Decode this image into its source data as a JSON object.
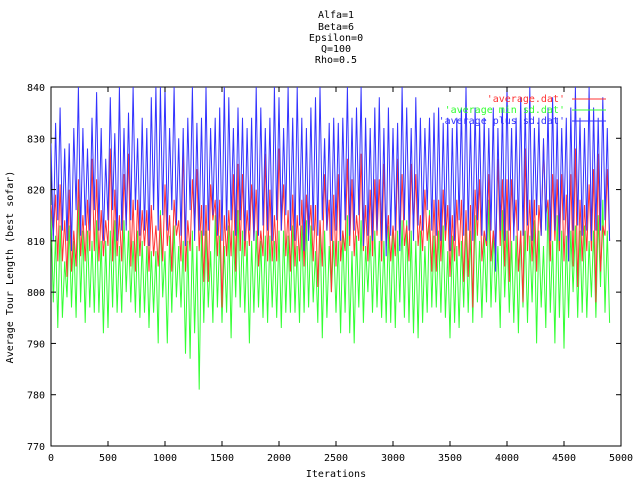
{
  "title_lines": [
    "Alfa=1",
    "Beta=6",
    "Epsilon=0",
    "Q=100",
    "Rho=0.5"
  ],
  "chart_data": {
    "type": "line",
    "title": "Alfa=1 Beta=6 Epsilon=0 Q=100 Rho=0.5",
    "xlabel": "Iterations",
    "ylabel": "Average Tour Length (best sofar)",
    "xlim": [
      0,
      5000
    ],
    "ylim": [
      770,
      840
    ],
    "x_ticks": [
      0,
      500,
      1000,
      1500,
      2000,
      2500,
      3000,
      3500,
      4000,
      4500,
      5000
    ],
    "y_ticks": [
      770,
      780,
      790,
      800,
      810,
      820,
      830,
      840
    ],
    "grid": false,
    "legend_position": "top-right",
    "x_step": 20,
    "series": [
      {
        "name": "'average.dat'",
        "color": "#ff3333",
        "values": [
          817,
          811,
          819,
          806,
          821,
          806,
          814,
          803,
          820,
          804,
          812,
          805,
          822,
          807,
          815,
          806,
          818,
          808,
          826,
          808,
          822,
          806,
          816,
          807,
          814,
          809,
          828,
          806,
          820,
          807,
          815,
          806,
          823,
          813,
          827,
          805,
          818,
          804,
          818,
          807,
          816,
          809,
          816,
          804,
          817,
          807,
          813,
          805,
          815,
          806,
          821,
          809,
          815,
          804,
          818,
          811,
          814,
          806,
          829,
          804,
          814,
          808,
          822,
          812,
          824,
          808,
          817,
          802,
          817,
          802,
          821,
          814,
          818,
          807,
          818,
          797,
          815,
          807,
          816,
          807,
          823,
          804,
          825,
          808,
          823,
          807,
          816,
          809,
          821,
          810,
          820,
          805,
          812,
          807,
          827,
          806,
          820,
          806,
          815,
          806,
          828,
          812,
          821,
          807,
          816,
          804,
          819,
          805,
          815,
          806,
          818,
          805,
          819,
          811,
          817,
          806,
          817,
          801,
          814,
          805,
          823,
          812,
          818,
          800,
          819,
          805,
          823,
          806,
          812,
          808,
          826,
          809,
          822,
          807,
          815,
          810,
          827,
          808,
          817,
          806,
          820,
          807,
          822,
          811,
          822,
          806,
          825,
          809,
          815,
          806,
          813,
          807,
          826,
          809,
          823,
          809,
          813,
          806,
          825,
          812,
          823,
          809,
          815,
          808,
          820,
          810,
          815,
          804,
          818,
          804,
          818,
          806,
          820,
          810,
          817,
          803,
          815,
          806,
          818,
          807,
          818,
          802,
          816,
          803,
          817,
          797,
          820,
          811,
          822,
          806,
          812,
          809,
          823,
          806,
          812,
          807,
          826,
          809,
          822,
          805,
          822,
          802,
          822,
          812,
          818,
          804,
          812,
          798,
          828,
          808,
          818,
          806,
          818,
          804,
          817,
          811,
          829,
          815,
          818,
          806,
          823,
          810,
          822,
          808,
          823,
          806,
          819,
          806,
          823,
          805,
          828,
          801,
          818,
          806,
          817,
          808,
          821,
          808,
          824,
          798,
          827,
          804,
          813,
          811,
          824,
          810
        ],
        "y_range": [
          794,
          829
        ]
      },
      {
        "name": "'average min sd.dat'",
        "color": "#33ff33",
        "values": [
          816,
          798,
          811,
          793,
          813,
          795,
          806,
          799,
          813,
          797,
          810,
          795,
          818,
          798,
          812,
          794,
          812,
          797,
          810,
          796,
          814,
          796,
          810,
          792,
          810,
          793,
          812,
          797,
          814,
          796,
          809,
          796,
          814,
          800,
          812,
          798,
          810,
          796,
          812,
          795,
          810,
          796,
          809,
          793,
          808,
          796,
          808,
          790,
          816,
          799,
          808,
          790,
          811,
          796,
          813,
          799,
          809,
          797,
          810,
          788,
          810,
          787,
          812,
          792,
          809,
          781,
          812,
          794,
          812,
          797,
          808,
          794,
          815,
          797,
          811,
          794,
          809,
          796,
          813,
          791,
          812,
          799,
          816,
          797,
          812,
          796,
          810,
          790,
          810,
          796,
          812,
          797,
          810,
          795,
          811,
          794,
          811,
          797,
          810,
          795,
          812,
          793,
          812,
          796,
          811,
          796,
          813,
          796,
          809,
          794,
          813,
          796,
          814,
          797,
          813,
          798,
          808,
          794,
          814,
          791,
          812,
          795,
          809,
          800,
          810,
          796,
          810,
          792,
          812,
          796,
          815,
          792,
          808,
          790,
          811,
          797,
          814,
          794,
          809,
          800,
          811,
          796,
          812,
          797,
          810,
          795,
          810,
          794,
          813,
          794,
          812,
          793,
          812,
          798,
          814,
          795,
          814,
          794,
          812,
          792,
          810,
          791,
          812,
          794,
          809,
          796,
          816,
          797,
          811,
          797,
          812,
          796,
          813,
          795,
          808,
          791,
          811,
          794,
          809,
          793,
          810,
          797,
          813,
          796,
          812,
          794,
          815,
          798,
          810,
          795,
          811,
          798,
          818,
          797,
          812,
          798,
          809,
          793,
          816,
          799,
          812,
          796,
          810,
          794,
          811,
          792,
          812,
          797,
          812,
          794,
          811,
          798,
          814,
          790,
          812,
          797,
          809,
          793,
          818,
          796,
          810,
          790,
          815,
          795,
          812,
          789,
          811,
          795,
          812,
          800,
          813,
          795,
          812,
          796,
          813,
          795,
          810,
          799,
          812,
          795,
          815,
          801,
          818,
          796,
          812,
          794
        ],
        "y_range": [
          781,
          820
        ]
      },
      {
        "name": "'average plus sd.dat'",
        "color": "#3333ff",
        "values": [
          829,
          810,
          833,
          814,
          836,
          812,
          828,
          810,
          829,
          808,
          832,
          816,
          840,
          811,
          832,
          813,
          828,
          812,
          834,
          816,
          839,
          812,
          832,
          810,
          826,
          814,
          838,
          816,
          831,
          810,
          840,
          812,
          832,
          812,
          835,
          814,
          840,
          816,
          830,
          811,
          834,
          812,
          832,
          809,
          838,
          816,
          840,
          812,
          840,
          815,
          840,
          812,
          832,
          816,
          840,
          813,
          830,
          811,
          832,
          809,
          834,
          816,
          840,
          810,
          833,
          812,
          834,
          811,
          840,
          812,
          832,
          815,
          834,
          811,
          836,
          810,
          840,
          812,
          838,
          814,
          832,
          811,
          836,
          814,
          834,
          810,
          832,
          812,
          834,
          810,
          840,
          811,
          836,
          813,
          832,
          812,
          834,
          810,
          840,
          814,
          838,
          812,
          832,
          815,
          840,
          812,
          834,
          810,
          840,
          813,
          834,
          808,
          832,
          810,
          836,
          812,
          838,
          811,
          840,
          814,
          830,
          812,
          833,
          810,
          834,
          812,
          833,
          810,
          834,
          814,
          840,
          811,
          834,
          812,
          836,
          815,
          840,
          809,
          834,
          811,
          832,
          810,
          836,
          812,
          838,
          810,
          832,
          807,
          836,
          811,
          832,
          812,
          833,
          808,
          840,
          814,
          836,
          812,
          832,
          810,
          838,
          813,
          834,
          812,
          832,
          816,
          834,
          812,
          835,
          811,
          836,
          810,
          833,
          812,
          834,
          808,
          832,
          810,
          834,
          814,
          836,
          811,
          840,
          812,
          833,
          810,
          836,
          814,
          833,
          811,
          834,
          810,
          832,
          812,
          836,
          804,
          832,
          812,
          836,
          810,
          840,
          812,
          832,
          810,
          834,
          812,
          838,
          811,
          836,
          813,
          840,
          810,
          832,
          815,
          834,
          811,
          830,
          812,
          836,
          810,
          838,
          812,
          834,
          810,
          832,
          814,
          834,
          806,
          836,
          812,
          840,
          813,
          834,
          811,
          832,
          812,
          840,
          810,
          836,
          812,
          834,
          812,
          838,
          814,
          832,
          810
        ],
        "y_range": [
          804,
          840
        ]
      }
    ]
  }
}
